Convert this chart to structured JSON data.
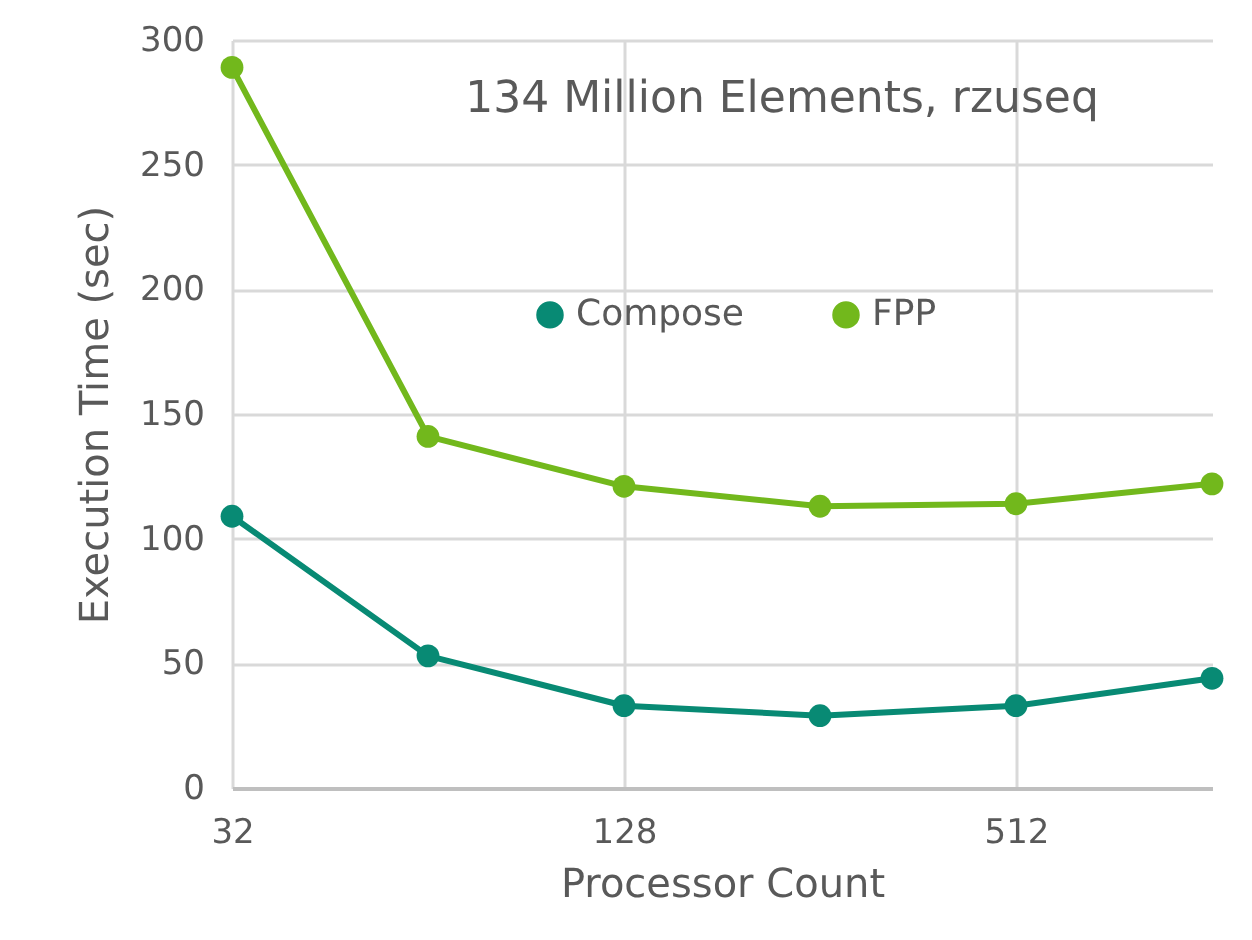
{
  "chart_data": {
    "type": "line",
    "title": "134 Million Elements, rzuseq",
    "xlabel": "Processor Count",
    "ylabel": "Execution Time (sec)",
    "x": [
      32,
      64,
      128,
      256,
      512,
      1024
    ],
    "series": [
      {
        "name": "Compose",
        "color": "#088a74",
        "values": [
          109,
          53,
          33,
          29,
          33,
          44
        ]
      },
      {
        "name": "FPP",
        "color": "#72b81c",
        "values": [
          289,
          141,
          121,
          113,
          114,
          122
        ]
      }
    ],
    "xlim": [
      32,
      1024
    ],
    "xticks": [
      32,
      128,
      512
    ],
    "log": "x",
    "ylim": [
      0,
      300
    ],
    "yticks": [
      0,
      50,
      100,
      150,
      200,
      250,
      300
    ],
    "grid": true,
    "legend": "top",
    "marker": "circle",
    "line_style": "solid"
  }
}
